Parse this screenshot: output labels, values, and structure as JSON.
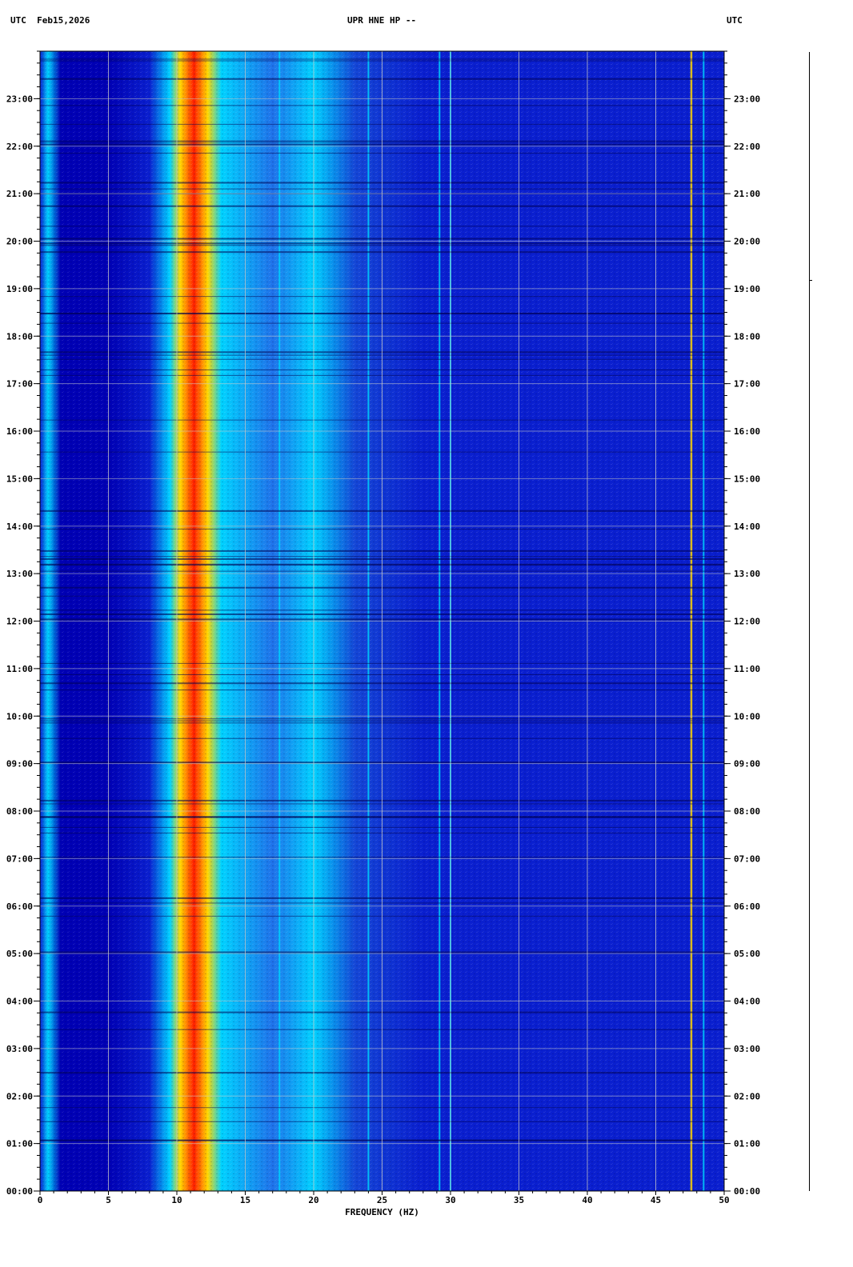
{
  "header": {
    "timezone_left": "UTC",
    "date": "Feb15,2026",
    "station": "UPR HNE HP --",
    "timezone_right": "UTC"
  },
  "colors": {
    "background": "#0a1fcf",
    "low": "#0000b4",
    "mid": "#00d2ff",
    "high": "#ffd700",
    "peak": "#ff1e00",
    "grid": "#c8c8c8"
  },
  "chart_data": {
    "type": "heatmap",
    "title": "UPR HNE HP --",
    "xlabel": "FREQUENCY (HZ)",
    "ylabel": "",
    "xlim": [
      0,
      50
    ],
    "ylim": [
      "00:00",
      "24:00"
    ],
    "x_ticks": [
      "0",
      "5",
      "10",
      "15",
      "20",
      "25",
      "30",
      "35",
      "40",
      "45",
      "50"
    ],
    "y_ticks": [
      "00:00",
      "01:00",
      "02:00",
      "03:00",
      "04:00",
      "05:00",
      "06:00",
      "07:00",
      "08:00",
      "09:00",
      "10:00",
      "11:00",
      "12:00",
      "13:00",
      "14:00",
      "15:00",
      "16:00",
      "17:00",
      "18:00",
      "19:00",
      "20:00",
      "21:00",
      "22:00",
      "23:00"
    ],
    "grid": true,
    "bands": [
      {
        "from_hz": 10.0,
        "to_hz": 14.3,
        "level": "high"
      },
      {
        "from_hz": 7.5,
        "to_hz": 20.0,
        "level": "mid"
      },
      {
        "from_hz": 20.0,
        "to_hz": 27.0,
        "level": "mid-low"
      },
      {
        "from_hz": 1.0,
        "to_hz": 5.0,
        "level": "low"
      }
    ],
    "spectral_lines_hz": [
      17.5,
      24.0,
      29.2,
      30.0,
      47.6,
      48.5
    ]
  }
}
